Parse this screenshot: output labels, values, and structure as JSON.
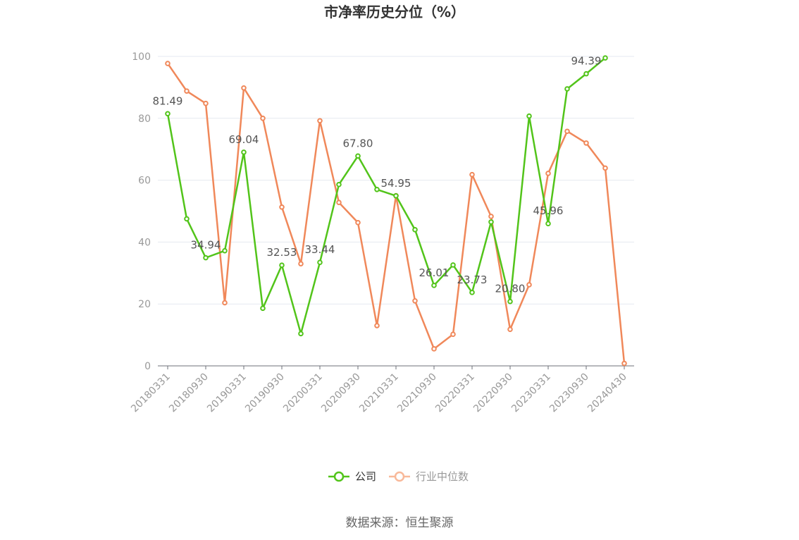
{
  "chart_data": {
    "type": "line",
    "title": "市净率历史分位（%）",
    "source": "数据来源：恒生聚源",
    "ylim": [
      0,
      100
    ],
    "yticks": [
      0,
      20,
      40,
      60,
      80,
      100
    ],
    "x": [
      "20180331",
      "20180630",
      "20180930",
      "20181231",
      "20190331",
      "20190630",
      "20190930",
      "20191231",
      "20200331",
      "20200630",
      "20200930",
      "20201231",
      "20210331",
      "20210630",
      "20210930",
      "20211231",
      "20220331",
      "20220630",
      "20220930",
      "20221231",
      "20230331",
      "20230630",
      "20230930",
      "20231231",
      "20240430"
    ],
    "xtick_labels": [
      "20180331",
      "20180930",
      "20190331",
      "20190930",
      "20200331",
      "20200930",
      "20210331",
      "20210930",
      "20220331",
      "20220930",
      "20230331",
      "20230930",
      "20240430"
    ],
    "legend_position": "bottom-center",
    "grid": true,
    "series": [
      {
        "name": "公司",
        "color": "#52c41a",
        "values": [
          81.49,
          47.5,
          34.94,
          37.2,
          69.04,
          18.6,
          32.53,
          10.4,
          33.44,
          58.6,
          67.8,
          57.0,
          54.95,
          44.0,
          26.01,
          32.6,
          23.73,
          46.5,
          20.8,
          80.7,
          45.96,
          89.5,
          94.39,
          99.5,
          null
        ],
        "labels": [
          {
            "index": 0,
            "text": "81.49"
          },
          {
            "index": 2,
            "text": "34.94"
          },
          {
            "index": 4,
            "text": "69.04"
          },
          {
            "index": 6,
            "text": "32.53"
          },
          {
            "index": 8,
            "text": "33.44"
          },
          {
            "index": 10,
            "text": "67.80"
          },
          {
            "index": 12,
            "text": "54.95"
          },
          {
            "index": 14,
            "text": "26.01"
          },
          {
            "index": 16,
            "text": "23.73"
          },
          {
            "index": 18,
            "text": "20.80"
          },
          {
            "index": 20,
            "text": "45.96"
          },
          {
            "index": 22,
            "text": "94.39"
          }
        ]
      },
      {
        "name": "行业中位数",
        "color": "#f0885a",
        "legend_color": "#f8b99a",
        "values": [
          97.7,
          88.8,
          84.8,
          20.4,
          89.8,
          80.0,
          51.3,
          33.0,
          79.2,
          52.8,
          46.3,
          13.0,
          55.0,
          21.0,
          5.5,
          10.2,
          61.8,
          48.3,
          11.8,
          26.2,
          62.2,
          75.8,
          72.0,
          63.9,
          0.8
        ]
      }
    ]
  }
}
